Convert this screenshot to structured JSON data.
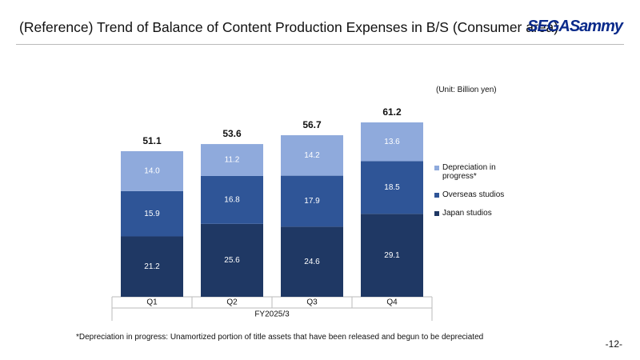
{
  "header": {
    "title": "(Reference) Trend of Balance of Content Production Expenses in B/S (Consumer area)",
    "logo": "SEGASammy"
  },
  "chart_data": {
    "type": "bar",
    "stacked": true,
    "unit_label": "(Unit: Billion yen)",
    "xlabel": "FY2025/3",
    "categories": [
      "Q1",
      "Q2",
      "Q3",
      "Q4"
    ],
    "series": [
      {
        "name": "Japan studios",
        "color": "#1f3864",
        "values": [
          21.2,
          25.6,
          24.6,
          29.1
        ]
      },
      {
        "name": "Overseas studios",
        "color": "#2f5597",
        "values": [
          15.9,
          16.8,
          17.9,
          18.5
        ]
      },
      {
        "name": "Depreciation in progress*",
        "color": "#8faadc",
        "values": [
          14.0,
          11.2,
          14.2,
          13.6
        ],
        "value_labels": [
          "14.0",
          "11.2",
          "14.2",
          "13.6"
        ]
      }
    ],
    "totals": [
      51.1,
      53.6,
      56.7,
      61.2
    ]
  },
  "footnote": "*Depreciation in progress: Unamortized portion of title assets that have been released and begun to be depreciated",
  "page_number": "-12-"
}
